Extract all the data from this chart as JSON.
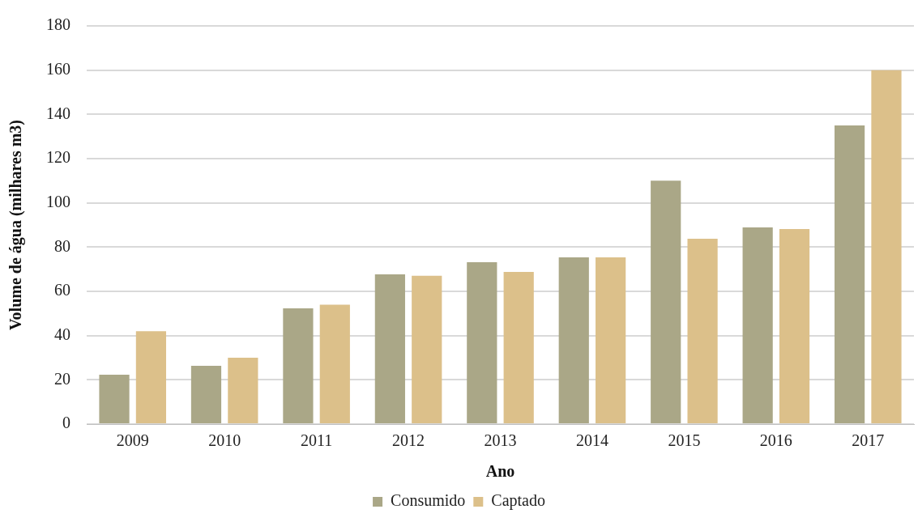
{
  "chart_data": {
    "type": "bar",
    "xlabel": "Ano",
    "ylabel": "Volume de água (milhares m3)",
    "categories": [
      "2009",
      "2010",
      "2011",
      "2012",
      "2013",
      "2014",
      "2015",
      "2016",
      "2017"
    ],
    "series": [
      {
        "name": "Consumido",
        "color": "#aaa787",
        "values": [
          22.3,
          26.3,
          52.3,
          67.7,
          73.2,
          75.4,
          110,
          88.9,
          135
        ]
      },
      {
        "name": "Captado",
        "color": "#dcc08a",
        "values": [
          42,
          30,
          54,
          67,
          68.8,
          75.4,
          83.8,
          88.2,
          160
        ]
      }
    ],
    "ylim": [
      0,
      180
    ],
    "yticks": [
      0,
      20,
      40,
      60,
      80,
      100,
      120,
      140,
      160,
      180
    ],
    "grid": "y",
    "legend": "bottom"
  }
}
